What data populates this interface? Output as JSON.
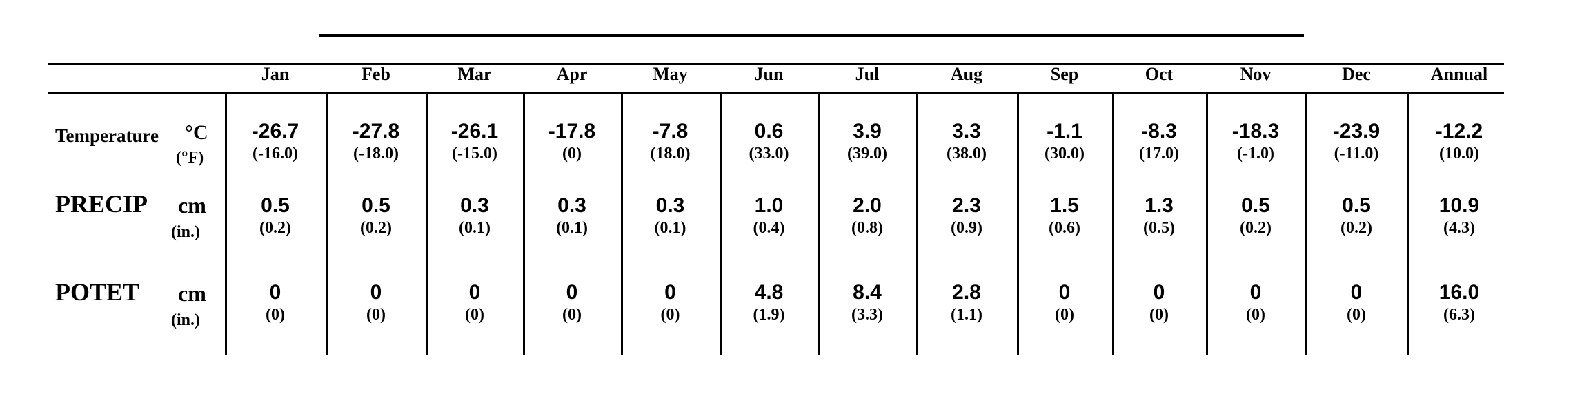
{
  "table": {
    "columns": [
      "Jan",
      "Feb",
      "Mar",
      "Apr",
      "May",
      "Jun",
      "Jul",
      "Aug",
      "Sep",
      "Oct",
      "Nov",
      "Dec",
      "Annual"
    ],
    "rows": [
      {
        "label": "Temperature",
        "unit_metric": "°C",
        "unit_imperial": "(°F)",
        "metric": [
          "-26.7",
          "-27.8",
          "-26.1",
          "-17.8",
          "-7.8",
          "0.6",
          "3.9",
          "3.3",
          "-1.1",
          "-8.3",
          "-18.3",
          "-23.9",
          "-12.2"
        ],
        "imperial": [
          "(-16.0)",
          "(-18.0)",
          "(-15.0)",
          "(0)",
          "(18.0)",
          "(33.0)",
          "(39.0)",
          "(38.0)",
          "(30.0)",
          "(17.0)",
          "(-1.0)",
          "(-11.0)",
          "(10.0)"
        ]
      },
      {
        "label": "PRECIP",
        "unit_metric": "cm",
        "unit_imperial": "(in.)",
        "metric": [
          "0.5",
          "0.5",
          "0.3",
          "0.3",
          "0.3",
          "1.0",
          "2.0",
          "2.3",
          "1.5",
          "1.3",
          "0.5",
          "0.5",
          "10.9"
        ],
        "imperial": [
          "(0.2)",
          "(0.2)",
          "(0.1)",
          "(0.1)",
          "(0.1)",
          "(0.4)",
          "(0.8)",
          "(0.9)",
          "(0.6)",
          "(0.5)",
          "(0.2)",
          "(0.2)",
          "(4.3)"
        ]
      },
      {
        "label": "POTET",
        "unit_metric": "cm",
        "unit_imperial": "(in.)",
        "metric": [
          "0",
          "0",
          "0",
          "0",
          "0",
          "4.8",
          "8.4",
          "2.8",
          "0",
          "0",
          "0",
          "0",
          "16.0"
        ],
        "imperial": [
          "(0)",
          "(0)",
          "(0)",
          "(0)",
          "(0)",
          "(1.9)",
          "(3.3)",
          "(1.1)",
          "(0)",
          "(0)",
          "(0)",
          "(0)",
          "(6.3)"
        ]
      }
    ]
  }
}
